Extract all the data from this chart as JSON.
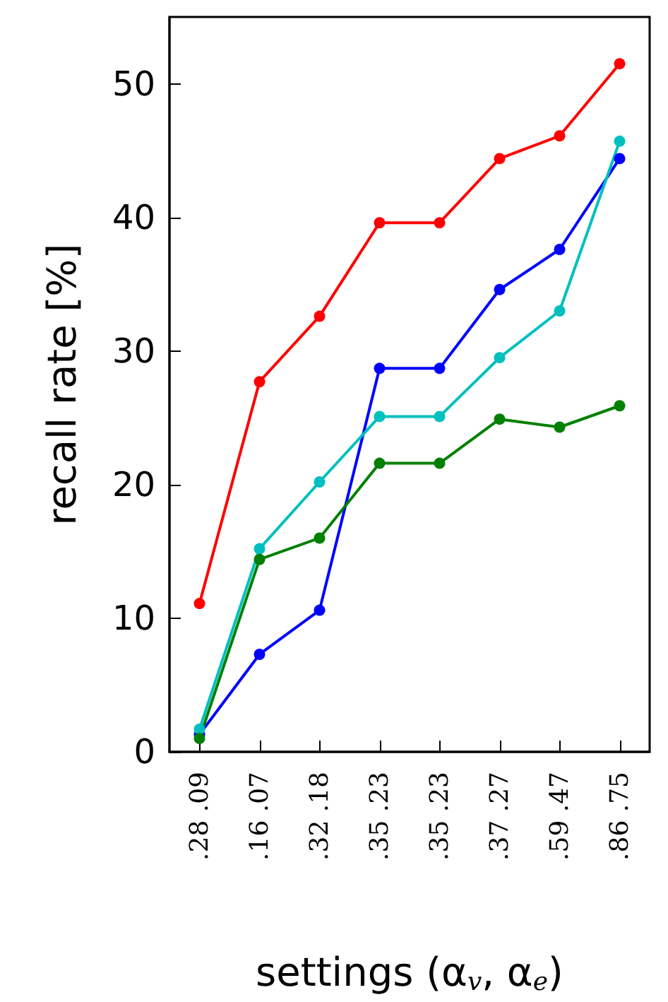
{
  "chart_data": {
    "type": "line",
    "xlabel": "settings (α$_{v}$, α$_{e}$)",
    "ylabel": "recall rate [%]",
    "categories": [
      ".28 .09",
      ".16 .07",
      ".32 .18",
      ".35 .23",
      ".35 .23",
      ".37 .27",
      ".59 .47",
      ".86 .75"
    ],
    "series": [
      {
        "color": "#ff0000",
        "values": [
          11.1,
          27.7,
          32.6,
          39.6,
          39.6,
          44.4,
          46.1,
          51.5
        ]
      },
      {
        "color": "#0000ff",
        "values": [
          1.3,
          7.3,
          10.6,
          28.7,
          28.7,
          34.6,
          37.6,
          44.4
        ]
      },
      {
        "color": "#00bfbf",
        "values": [
          1.7,
          15.2,
          20.2,
          25.1,
          25.1,
          29.5,
          33.0,
          45.7
        ]
      },
      {
        "color": "#008000",
        "values": [
          1.0,
          14.4,
          16.0,
          21.6,
          21.6,
          24.9,
          24.3,
          25.9
        ]
      }
    ],
    "ylim": [
      0,
      55
    ],
    "yticks": [
      0,
      10,
      20,
      30,
      40,
      50
    ],
    "marker": "circle",
    "line_style": "solid",
    "grid": false
  }
}
